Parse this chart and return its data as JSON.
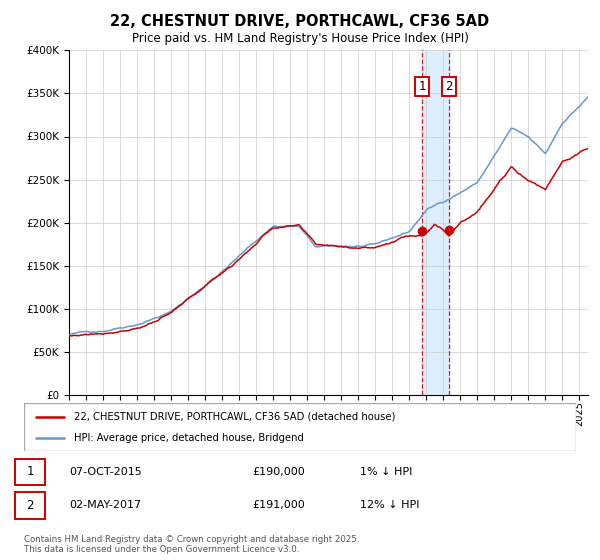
{
  "title": "22, CHESTNUT DRIVE, PORTHCAWL, CF36 5AD",
  "subtitle": "Price paid vs. HM Land Registry's House Price Index (HPI)",
  "legend_line1": "22, CHESTNUT DRIVE, PORTHCAWL, CF36 5AD (detached house)",
  "legend_line2": "HPI: Average price, detached house, Bridgend",
  "sale1_date": "07-OCT-2015",
  "sale1_price": 190000,
  "sale1_hpi": "1% ↓ HPI",
  "sale2_date": "02-MAY-2017",
  "sale2_price": 191000,
  "sale2_hpi": "12% ↓ HPI",
  "sale1_x": 2015.77,
  "sale2_x": 2017.33,
  "footnote": "Contains HM Land Registry data © Crown copyright and database right 2025.\nThis data is licensed under the Open Government Licence v3.0.",
  "hpi_color": "#6699cc",
  "price_color": "#cc0000",
  "sale_dot_color": "#cc0000",
  "shade_color": "#ddeeff",
  "grid_color": "#cccccc",
  "bg_color": "#ffffff",
  "ylim": [
    0,
    400000
  ],
  "xlim": [
    1995,
    2025.5
  ],
  "hpi_checkpoints_t": [
    1995,
    1997,
    1999,
    2001,
    2003,
    2005,
    2007,
    2008.5,
    2009.5,
    2011,
    2013,
    2015,
    2016,
    2017,
    2019,
    2021,
    2022,
    2023,
    2024,
    2025.5
  ],
  "hpi_checkpoints_v": [
    70000,
    75000,
    85000,
    100000,
    130000,
    165000,
    200000,
    200000,
    175000,
    175000,
    175000,
    190000,
    215000,
    225000,
    248000,
    310000,
    298000,
    278000,
    315000,
    345000
  ],
  "price_checkpoints_t": [
    1995,
    1997,
    1999,
    2001,
    2003,
    2005,
    2007,
    2008.5,
    2009.5,
    2011,
    2013,
    2015,
    2015.77,
    2016.5,
    2017.33,
    2018,
    2019,
    2021,
    2022,
    2023,
    2024,
    2025.5
  ],
  "price_checkpoints_v": [
    68000,
    73000,
    82000,
    98000,
    128000,
    160000,
    198000,
    198000,
    173000,
    172000,
    173000,
    188000,
    190000,
    205000,
    191000,
    208000,
    222000,
    272000,
    258000,
    248000,
    282000,
    296000
  ]
}
